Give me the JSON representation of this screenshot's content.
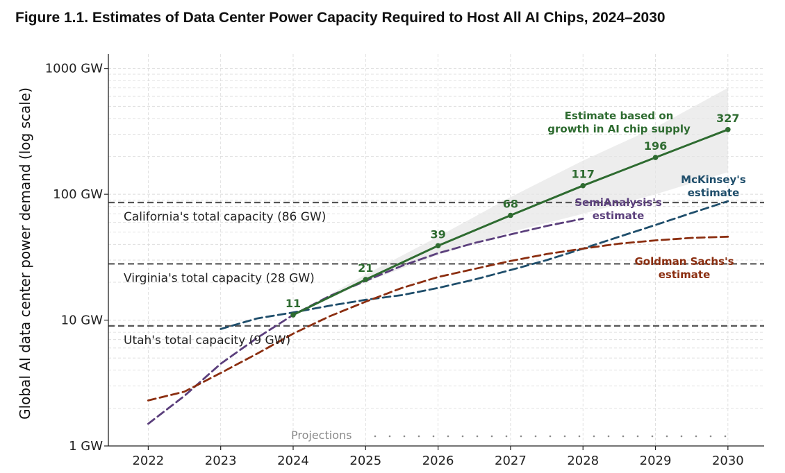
{
  "title": "Figure 1.1. Estimates of Data Center Power Capacity Required to Host All AI Chips, 2024–2030",
  "colors": {
    "chip_supply": "#2e6b30",
    "semianalysis": "#5b3f7c",
    "mckinsey": "#1f4e6b",
    "goldman": "#8b2e10",
    "reference": "#555555",
    "band": "#e6e6e6",
    "grid": "#d9d9d9"
  },
  "chart_data": {
    "type": "line",
    "ylabel": "Global AI data center power demand (log scale)",
    "yscale": "log",
    "ylim": [
      1,
      1300
    ],
    "xlim": [
      2021.45,
      2030.5
    ],
    "yticks": [
      {
        "value": 1,
        "label": "1 GW"
      },
      {
        "value": 10,
        "label": "10 GW"
      },
      {
        "value": 100,
        "label": "100 GW"
      },
      {
        "value": 1000,
        "label": "1000 GW"
      }
    ],
    "xticks": [
      2022,
      2023,
      2024,
      2025,
      2026,
      2027,
      2028,
      2029,
      2030
    ],
    "grid": true,
    "series": [
      {
        "key": "chip_supply",
        "name": "Estimate based on growth in AI chip supply",
        "label_lines": [
          "Estimate based on",
          "growth in AI chip supply"
        ],
        "style": "solid",
        "x": [
          2024,
          2025,
          2026,
          2027,
          2028,
          2029,
          2030
        ],
        "values": [
          11,
          21,
          39,
          68,
          117,
          196,
          327
        ],
        "point_labels": [
          "11",
          "21",
          "39",
          "68",
          "117",
          "196",
          "327"
        ],
        "band_upper": [
          11,
          23,
          46,
          95,
          185,
          340,
          700
        ],
        "band_lower": [
          11,
          20,
          33,
          50,
          70,
          100,
          150
        ]
      },
      {
        "key": "semianalysis",
        "name": "SemiAnalysis's estimate",
        "label_lines": [
          "SemiAnalysis's",
          "estimate"
        ],
        "style": "dashed",
        "x": [
          2022,
          2022.5,
          2023,
          2023.5,
          2024,
          2024.5,
          2025,
          2025.5,
          2026,
          2026.5,
          2027,
          2027.5,
          2028
        ],
        "values": [
          1.5,
          2.5,
          4.5,
          7.2,
          11,
          15.5,
          20.5,
          27,
          34,
          41,
          48,
          56,
          64
        ]
      },
      {
        "key": "mckinsey",
        "name": "McKinsey's estimate",
        "label_lines": [
          "McKinsey's",
          "estimate"
        ],
        "style": "dashed",
        "x": [
          2023,
          2023.5,
          2024,
          2024.5,
          2025,
          2025.5,
          2026,
          2026.5,
          2027,
          2027.5,
          2028,
          2028.5,
          2029,
          2029.5,
          2030
        ],
        "values": [
          8.5,
          10.3,
          11.5,
          13,
          14.5,
          15.8,
          18,
          21,
          25,
          30,
          37,
          46,
          57,
          71,
          88
        ]
      },
      {
        "key": "goldman",
        "name": "Goldman Sachs's estimate",
        "label_lines": [
          "Goldman Sachs's",
          "estimate"
        ],
        "style": "dashed",
        "x": [
          2022,
          2022.5,
          2023,
          2023.5,
          2024,
          2024.5,
          2025,
          2025.5,
          2026,
          2026.5,
          2027,
          2027.5,
          2028,
          2028.5,
          2029,
          2029.5,
          2030
        ],
        "values": [
          2.3,
          2.7,
          3.8,
          5.4,
          7.8,
          10.7,
          14,
          18,
          22,
          25.5,
          29.5,
          33.5,
          37,
          40.5,
          43,
          45,
          46
        ]
      }
    ],
    "reference_lines": [
      {
        "key": "california",
        "value": 86,
        "label": "California's total capacity (86 GW)"
      },
      {
        "key": "virginia",
        "value": 28,
        "label": "Virginia's total capacity (28 GW)"
      },
      {
        "key": "utah",
        "value": 9,
        "label": "Utah's total capacity (9 GW)"
      }
    ],
    "annotations": [
      {
        "key": "projections",
        "text": "Projections",
        "x": 2024,
        "value": 1.1
      }
    ]
  }
}
